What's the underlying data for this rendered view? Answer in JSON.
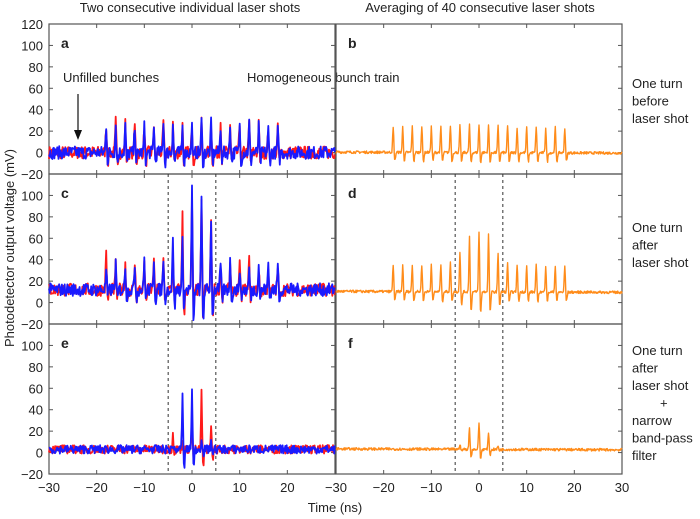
{
  "titles": {
    "left": "Two consecutive individual laser shots",
    "right": "Averaging of 40 consecutive laser shots"
  },
  "ylabel": "Photodetector output voltage (mV)",
  "xlabel": "Time (ns)",
  "row_labels": [
    [
      "One turn",
      "before",
      "laser shot"
    ],
    [
      "One turn",
      "after",
      "laser shot"
    ],
    [
      "One turn",
      "after",
      "laser shot",
      "+",
      "narrow",
      "band-pass",
      "filter"
    ]
  ],
  "annotations": {
    "unfilled": "Unfilled bunches",
    "homogeneous": "Homogeneous bunch train"
  },
  "colors": {
    "shot1": "#ff1a1a",
    "shot2": "#1a1aff",
    "average": "#ff8c1a",
    "dashed": "#333333"
  },
  "chart_data": {
    "type": "line",
    "xlim": [
      -30,
      30
    ],
    "ylim": [
      -20,
      120
    ],
    "xticks": [
      "-30",
      "-20",
      "-10",
      "0",
      "10",
      "20",
      "30"
    ],
    "yticks": [
      "-20",
      "0",
      "20",
      "40",
      "60",
      "80",
      "100",
      "120"
    ],
    "dashed_lines_x": [
      -5,
      5
    ],
    "bunch_times": [
      -18,
      -16,
      -14,
      -12,
      -10,
      -8,
      -6,
      -4,
      -2,
      0,
      2,
      4,
      6,
      8,
      10,
      12,
      14,
      16,
      18
    ],
    "panels": [
      {
        "label": "a",
        "baseline": 0,
        "series": [
          {
            "color_key": "shot1",
            "peaks": [
              26,
              29,
              27,
              26,
              25,
              27,
              29,
              27,
              26,
              25,
              27,
              26,
              29,
              26,
              27,
              29,
              26,
              23,
              22
            ]
          },
          {
            "color_key": "shot2",
            "peaks": [
              26,
              27,
              27,
              26,
              24,
              27,
              30,
              28,
              24,
              25,
              30,
              27,
              25,
              27,
              25,
              28,
              24,
              22,
              21
            ]
          }
        ]
      },
      {
        "label": "b",
        "baseline": 0,
        "series": [
          {
            "color_key": "average",
            "peaks": [
              23,
              24,
              24,
              24,
              24,
              24,
              25,
              25,
              26,
              26,
              26,
              25,
              25,
              24,
              24,
              24,
              24,
              24,
              23
            ]
          }
        ]
      },
      {
        "label": "c",
        "baseline": 12,
        "series": [
          {
            "color_key": "shot1",
            "peaks": [
              45,
              36,
              38,
              37,
              40,
              45,
              40,
              50,
              88,
              95,
              92,
              78,
              38,
              37,
              34,
              40,
              33,
              35,
              34
            ]
          },
          {
            "color_key": "shot2",
            "peaks": [
              30,
              37,
              36,
              36,
              41,
              42,
              43,
              64,
              56,
              105,
              98,
              80,
              37,
              38,
              33,
              32,
              35,
              37,
              36
            ]
          }
        ]
      },
      {
        "label": "d",
        "baseline": 10,
        "series": [
          {
            "color_key": "average",
            "peaks": [
              35,
              35,
              35,
              35,
              36,
              36,
              37,
              48,
              62,
              66,
              65,
              47,
              37,
              36,
              35,
              35,
              35,
              35,
              34
            ]
          }
        ]
      },
      {
        "label": "e",
        "baseline": 3,
        "series": [
          {
            "color_key": "shot1",
            "peaks": [
              0,
              0,
              0,
              0,
              0,
              0,
              0,
              20,
              10,
              30,
              56,
              25,
              0,
              0,
              0,
              0,
              0,
              0,
              0
            ]
          },
          {
            "color_key": "shot2",
            "peaks": [
              0,
              0,
              0,
              0,
              0,
              0,
              0,
              8,
              54,
              58,
              15,
              8,
              0,
              0,
              0,
              0,
              0,
              0,
              0
            ]
          }
        ]
      },
      {
        "label": "f",
        "baseline": 3,
        "series": [
          {
            "color_key": "average",
            "peaks": [
              0,
              0,
              0,
              0,
              0,
              0,
              0,
              8,
              23,
              28,
              19,
              6,
              0,
              0,
              0,
              0,
              0,
              0,
              0
            ]
          }
        ]
      }
    ]
  }
}
